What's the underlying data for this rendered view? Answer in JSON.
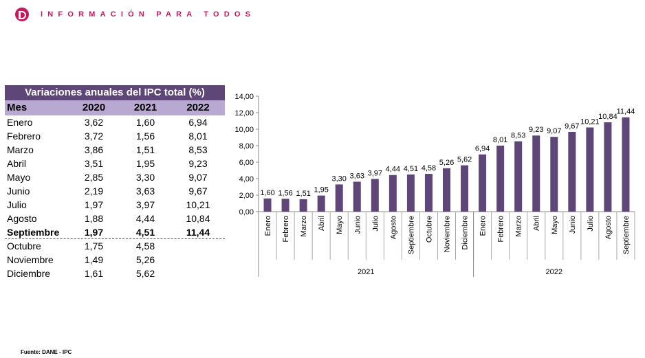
{
  "header": {
    "brand": "INFORMACIÓN PARA TODOS"
  },
  "table": {
    "title": "Variaciones anuales del IPC total (%)",
    "columns": [
      "Mes",
      "2020",
      "2021",
      "2022"
    ],
    "rows": [
      [
        "Enero",
        "3,62",
        "1,60",
        "6,94"
      ],
      [
        "Febrero",
        "3,72",
        "1,56",
        "8,01"
      ],
      [
        "Marzo",
        "3,86",
        "1,51",
        "8,53"
      ],
      [
        "Abril",
        "3,51",
        "1,95",
        "9,23"
      ],
      [
        "Mayo",
        "2,85",
        "3,30",
        "9,07"
      ],
      [
        "Junio",
        "2,19",
        "3,63",
        "9,67"
      ],
      [
        "Julio",
        "1,97",
        "3,97",
        "10,21"
      ],
      [
        "Agosto",
        "1,88",
        "4,44",
        "10,84"
      ],
      [
        "Septiembre",
        "1,97",
        "4,51",
        "11,44"
      ],
      [
        "Octubre",
        "1,75",
        "4,58",
        ""
      ],
      [
        "Noviembre",
        "1,49",
        "5,26",
        ""
      ],
      [
        "Diciembre",
        "1,61",
        "5,62",
        ""
      ]
    ],
    "bold_row": "Septiembre"
  },
  "source": "Fuente: DANE - IPC",
  "chart_data": {
    "type": "bar",
    "color": "#5e4679",
    "ylim": [
      0,
      14
    ],
    "yticks": [
      "0,00",
      "2,00",
      "4,00",
      "6,00",
      "8,00",
      "10,00",
      "12,00",
      "14,00"
    ],
    "categories": [
      "Enero",
      "Febrero",
      "Marzo",
      "Abril",
      "Mayo",
      "Junio",
      "Julio",
      "Agosto",
      "Septiembre",
      "Octubre",
      "Noviembre",
      "Diciembre",
      "Enero",
      "Febrero",
      "Marzo",
      "Abril",
      "Mayo",
      "Junio",
      "Julio",
      "Agosto",
      "Septiembre"
    ],
    "values": [
      1.6,
      1.56,
      1.51,
      1.95,
      3.3,
      3.63,
      3.97,
      4.44,
      4.51,
      4.58,
      5.26,
      5.62,
      6.94,
      8.01,
      8.53,
      9.23,
      9.07,
      9.67,
      10.21,
      10.84,
      11.44
    ],
    "labels": [
      "1,60",
      "1,56",
      "1,51",
      "1,95",
      "3,30",
      "3,63",
      "3,97",
      "4,44",
      "4,51",
      "4,58",
      "5,26",
      "5,62",
      "6,94",
      "8,01",
      "8,53",
      "9,23",
      "9,07",
      "9,67",
      "10,21",
      "10,84",
      "11,44"
    ],
    "groups": [
      {
        "label": "2021",
        "count": 12
      },
      {
        "label": "2022",
        "count": 9
      }
    ]
  }
}
